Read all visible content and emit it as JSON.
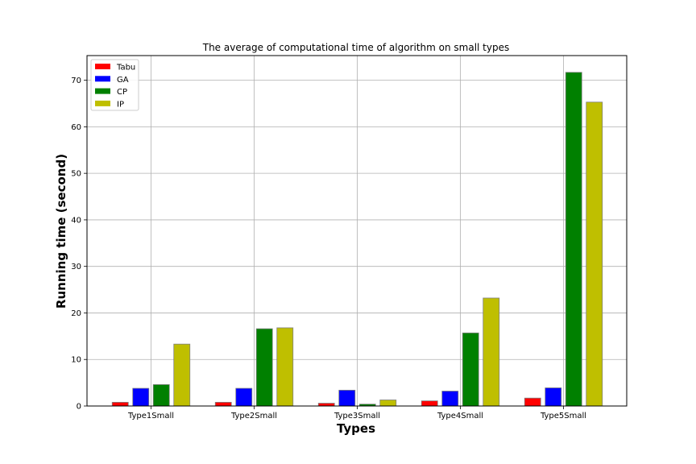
{
  "chart_data": {
    "type": "bar",
    "title": "The average of computational time of algorithm on small types",
    "xlabel": "Types",
    "ylabel": "Running time (second)",
    "categories": [
      "Type1Small",
      "Type2Small",
      "Type3Small",
      "Type4Small",
      "Type5Small"
    ],
    "series": [
      {
        "name": "Tabu",
        "color": "#ff0000",
        "values": [
          0.8,
          0.8,
          0.6,
          1.1,
          1.7
        ]
      },
      {
        "name": "GA",
        "color": "#0000ff",
        "values": [
          3.8,
          3.8,
          3.4,
          3.2,
          3.9
        ]
      },
      {
        "name": "CP",
        "color": "#008000",
        "values": [
          4.6,
          16.6,
          0.4,
          15.7,
          71.7
        ]
      },
      {
        "name": "IP",
        "color": "#bfbf00",
        "values": [
          13.3,
          16.8,
          1.3,
          23.2,
          65.3
        ]
      }
    ],
    "ylim": [
      0,
      75.3
    ],
    "yticks": [
      0,
      10,
      20,
      30,
      40,
      50,
      60,
      70
    ],
    "grid": true,
    "legend_position": "upper-left"
  }
}
